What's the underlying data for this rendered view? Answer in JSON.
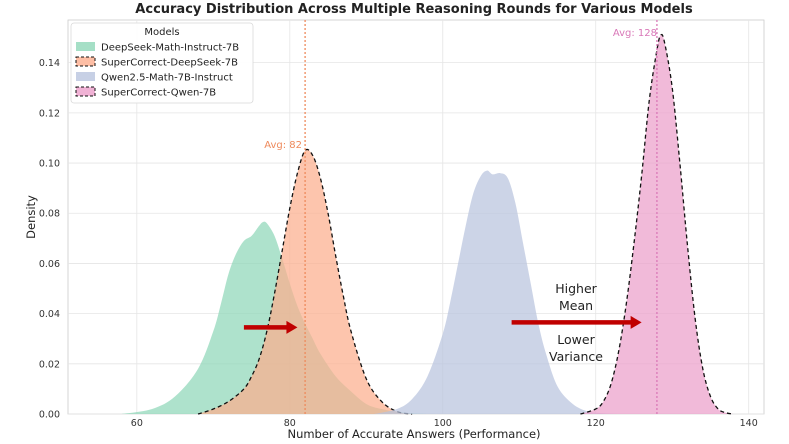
{
  "chart_data": {
    "type": "area",
    "title": "Accuracy Distribution Across Multiple Reasoning Rounds for Various Models",
    "xlabel": "Number of Accurate Answers (Performance)",
    "ylabel": "Density",
    "xlim": [
      51,
      142
    ],
    "ylim": [
      0,
      0.157
    ],
    "xticks": [
      60,
      80,
      100,
      120,
      140
    ],
    "yticks": [
      0.0,
      0.02,
      0.04,
      0.06,
      0.08,
      0.1,
      0.12,
      0.14
    ],
    "ytick_labels": [
      "0.00",
      "0.02",
      "0.04",
      "0.06",
      "0.08",
      "0.10",
      "0.12",
      "0.14"
    ],
    "grid": true,
    "legend": {
      "title": "Models",
      "position": "top-left",
      "entries": [
        "DeepSeek-Math-Instruct-7B",
        "SuperCorrect-DeepSeek-7B",
        "Qwen2.5-Math-7B-Instruct",
        "SuperCorrect-Qwen-7B"
      ]
    },
    "series": [
      {
        "name": "DeepSeek-Math-Instruct-7B",
        "color": "#8fd7b8",
        "dashed_outline": false,
        "x": [
          58,
          62,
          65,
          68,
          70,
          71,
          72,
          73,
          74,
          75,
          76,
          76.5,
          77,
          78,
          79,
          80,
          81,
          82,
          83,
          84,
          86,
          88,
          90,
          92,
          95,
          98
        ],
        "y": [
          0,
          0.002,
          0.007,
          0.018,
          0.033,
          0.044,
          0.056,
          0.064,
          0.069,
          0.071,
          0.075,
          0.0765,
          0.076,
          0.071,
          0.062,
          0.052,
          0.043,
          0.036,
          0.03,
          0.024,
          0.015,
          0.009,
          0.004,
          0.002,
          0.0005,
          0
        ]
      },
      {
        "name": "SuperCorrect-DeepSeek-7B",
        "color": "#fcae8e",
        "dashed_outline": true,
        "x": [
          68,
          70,
          72,
          74,
          75,
          76,
          77,
          78,
          79,
          80,
          81,
          82,
          83,
          84,
          85,
          86,
          87,
          88,
          90,
          92,
          94,
          96
        ],
        "y": [
          0,
          0.002,
          0.005,
          0.01,
          0.015,
          0.022,
          0.033,
          0.048,
          0.065,
          0.082,
          0.096,
          0.105,
          0.103,
          0.094,
          0.08,
          0.063,
          0.047,
          0.033,
          0.014,
          0.005,
          0.001,
          0
        ]
      },
      {
        "name": "Qwen2.5-Math-7B-Instruct",
        "color": "#b9c4de",
        "dashed_outline": false,
        "x": [
          91,
          94,
          96,
          98,
          100,
          101,
          102,
          103,
          104,
          105,
          105.8,
          106.5,
          107.5,
          108.5,
          109.5,
          110.5,
          111.5,
          112.5,
          113.5,
          115,
          117,
          119,
          121,
          123
        ],
        "y": [
          0,
          0.002,
          0.006,
          0.015,
          0.032,
          0.045,
          0.06,
          0.075,
          0.088,
          0.095,
          0.097,
          0.0955,
          0.096,
          0.094,
          0.084,
          0.068,
          0.052,
          0.036,
          0.024,
          0.011,
          0.004,
          0.001,
          0.0003,
          0
        ]
      },
      {
        "name": "SuperCorrect-Qwen-7B",
        "color": "#ec9fcb",
        "dashed_outline": true,
        "x": [
          118,
          120,
          121,
          122,
          123,
          124,
          125,
          126,
          127,
          128,
          128.5,
          129,
          130,
          131,
          132,
          133,
          134,
          135,
          136,
          137,
          138
        ],
        "y": [
          0,
          0.002,
          0.005,
          0.012,
          0.025,
          0.044,
          0.068,
          0.095,
          0.125,
          0.145,
          0.151,
          0.148,
          0.13,
          0.1,
          0.067,
          0.038,
          0.018,
          0.007,
          0.002,
          0.0005,
          0
        ]
      }
    ],
    "avg_lines": [
      {
        "x": 82,
        "label": "Avg: 82",
        "color": "#ee8a5c"
      },
      {
        "x": 128,
        "label": "Avg: 128",
        "color": "#d978b8"
      }
    ],
    "arrows": [
      {
        "x_start": 74,
        "x_end": 81,
        "y": 0.0345,
        "color": "#c00000"
      },
      {
        "x_start": 109,
        "x_end": 126,
        "y": 0.0365,
        "color": "#c00000"
      }
    ],
    "annotations": {
      "higher": "Higher",
      "mean": "Mean",
      "lower": "Lower",
      "variance": "Variance"
    }
  }
}
